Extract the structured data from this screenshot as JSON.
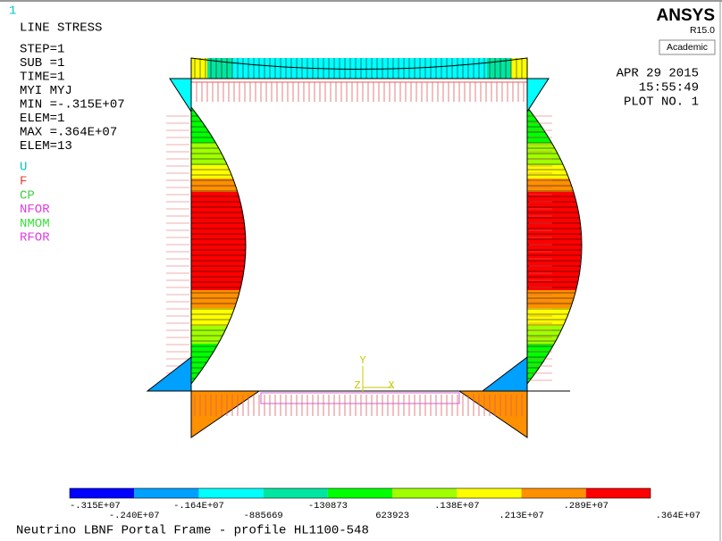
{
  "window_number": "1",
  "info": {
    "title": "LINE STRESS",
    "lines": [
      "STEP=1",
      "SUB =1",
      "TIME=1",
      "MYI      MYJ",
      "MIN =-.315E+07",
      "ELEM=1",
      "MAX =.364E+07",
      "ELEM=13"
    ]
  },
  "symbols": [
    {
      "label": "U",
      "color": "#00c8c8"
    },
    {
      "label": "F",
      "color": "#e03c3c"
    },
    {
      "label": "CP",
      "color": "#3cd03c"
    },
    {
      "label": "NFOR",
      "color": "#e03ce0"
    },
    {
      "label": "NMOM",
      "color": "#3ce03c"
    },
    {
      "label": "RFOR",
      "color": "#e03ce0"
    }
  ],
  "logo": {
    "name": "ANSYS",
    "version": "R15.0",
    "edition": "Academic"
  },
  "stamp": {
    "date": "APR 29 2015",
    "time": "15:55:49",
    "plot": "PLOT NO.    1"
  },
  "axes": {
    "y": "Y",
    "z": "Z",
    "x": "X"
  },
  "colorbar": {
    "colors": [
      "#0000ff",
      "#00a0ff",
      "#00ffff",
      "#00e6a0",
      "#00ff00",
      "#a0ff00",
      "#ffff00",
      "#ff9000",
      "#ff0000"
    ],
    "labels": [
      "-.315E+07",
      "-.240E+07",
      "-.164E+07",
      "-885669",
      "-130873",
      "623923",
      ".138E+07",
      ".213E+07",
      ".289E+07",
      ".364E+07"
    ]
  },
  "caption": "Neutrino LBNF Portal Frame - profile HL1100-548"
}
